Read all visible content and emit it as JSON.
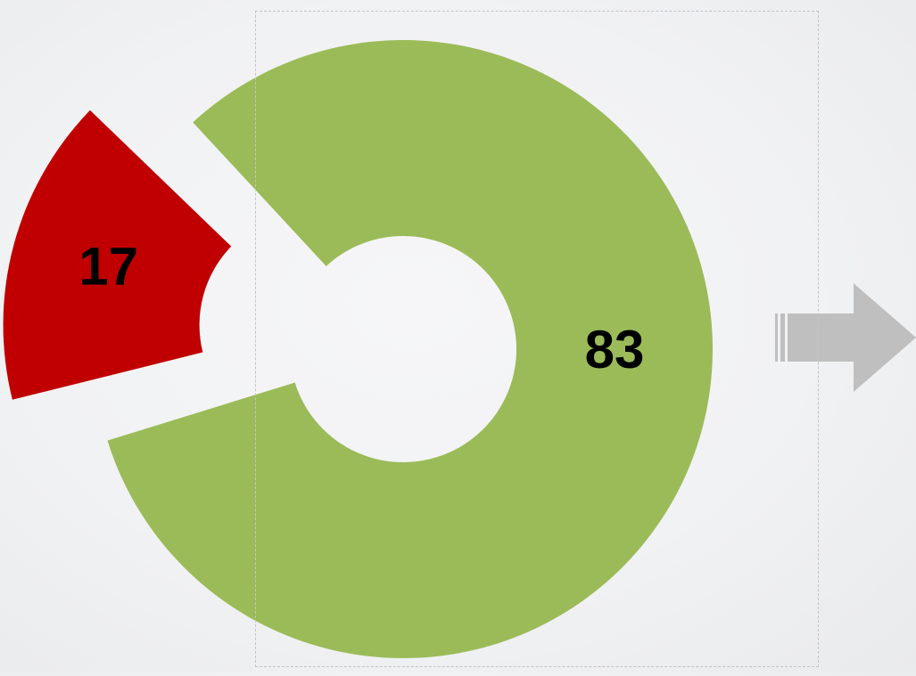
{
  "chart_data": {
    "type": "pie",
    "variant": "donut-exploded",
    "slices": [
      {
        "label": "17",
        "value": 17,
        "color": "#C00000",
        "exploded": true
      },
      {
        "label": "83",
        "value": 83,
        "color": "#9BBB59",
        "exploded": false
      }
    ],
    "title": "",
    "legend": "none"
  },
  "decor": {
    "arrow_color": "#BFBFBF",
    "arrow_icon": "right-arrow-icon",
    "selection_border_color": "#C3C4C7"
  }
}
